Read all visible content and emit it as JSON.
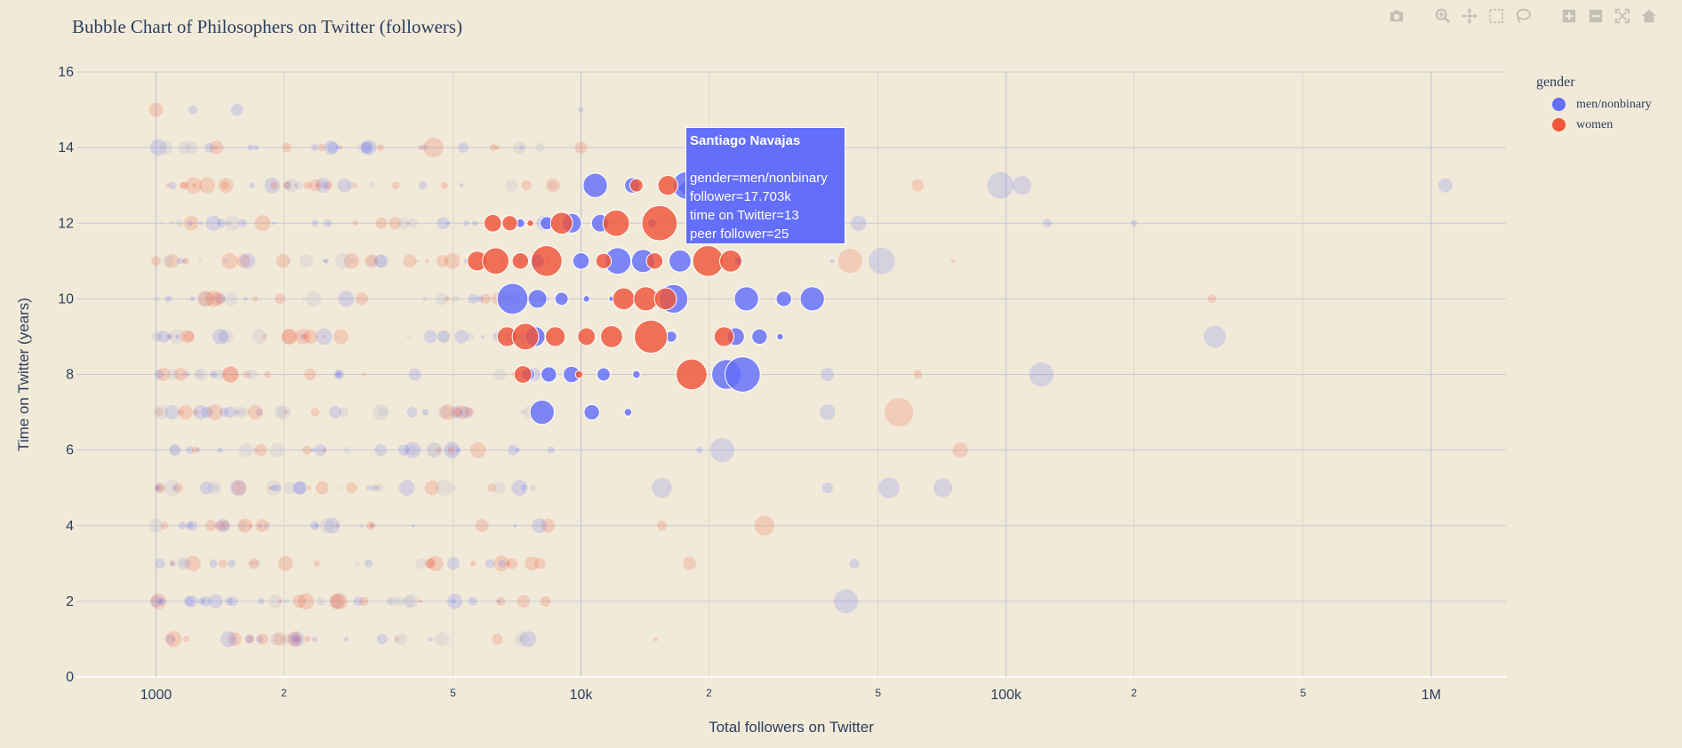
{
  "colors": {
    "men": "#636efa",
    "women": "#ef553b",
    "paper": "#f2ead8",
    "grid": "#c8cbd6"
  },
  "chart_data": {
    "type": "scatter",
    "title": "Bubble Chart of Philosophers on Twitter (followers)",
    "xlabel": "Total followers on Twitter",
    "ylabel": "Time on Twitter (years)",
    "x_scale": "log",
    "xlim": [
      650,
      1500000
    ],
    "ylim": [
      0,
      16
    ],
    "x_major_ticks": [
      {
        "value": 1000,
        "label": "1000"
      },
      {
        "value": 10000,
        "label": "10k"
      },
      {
        "value": 100000,
        "label": "100k"
      },
      {
        "value": 1000000,
        "label": "1M"
      }
    ],
    "x_minor_ticks": [
      {
        "value": 2000,
        "label": "2"
      },
      {
        "value": 5000,
        "label": "5"
      },
      {
        "value": 20000,
        "label": "2"
      },
      {
        "value": 50000,
        "label": "5"
      },
      {
        "value": 200000,
        "label": "2"
      },
      {
        "value": 500000,
        "label": "5"
      }
    ],
    "y_ticks": [
      {
        "value": 0,
        "label": "0"
      },
      {
        "value": 2,
        "label": "2"
      },
      {
        "value": 4,
        "label": "4"
      },
      {
        "value": 6,
        "label": "6"
      },
      {
        "value": 8,
        "label": "8"
      },
      {
        "value": 10,
        "label": "10"
      },
      {
        "value": 12,
        "label": "12"
      },
      {
        "value": 14,
        "label": "14"
      },
      {
        "value": 16,
        "label": "16"
      }
    ],
    "grid": true,
    "legend": {
      "title": "gender",
      "placement": "top-right"
    },
    "bubble_size": "peer follower",
    "series": [
      {
        "name": "men/nonbinary",
        "color": "#636efa",
        "points": [
          {
            "x": 17703,
            "y": 13,
            "s": 25,
            "hl": true
          },
          {
            "x": 10800,
            "y": 13,
            "s": 22,
            "hl": true
          },
          {
            "x": 13200,
            "y": 13,
            "s": 14,
            "hl": true
          },
          {
            "x": 7200,
            "y": 12,
            "s": 8,
            "hl": true
          },
          {
            "x": 8300,
            "y": 12,
            "s": 12,
            "hl": true
          },
          {
            "x": 9500,
            "y": 12,
            "s": 18,
            "hl": true
          },
          {
            "x": 11100,
            "y": 12,
            "s": 16,
            "hl": true
          },
          {
            "x": 14700,
            "y": 12,
            "s": 8,
            "hl": true
          },
          {
            "x": 18500,
            "y": 12,
            "s": 5,
            "hl": true
          },
          {
            "x": 7900,
            "y": 11,
            "s": 13,
            "hl": true
          },
          {
            "x": 10000,
            "y": 11,
            "s": 15,
            "hl": true
          },
          {
            "x": 12200,
            "y": 11,
            "s": 24,
            "hl": true
          },
          {
            "x": 14000,
            "y": 11,
            "s": 21,
            "hl": true
          },
          {
            "x": 17100,
            "y": 11,
            "s": 20,
            "hl": true
          },
          {
            "x": 23500,
            "y": 11,
            "s": 8,
            "hl": true
          },
          {
            "x": 6900,
            "y": 10,
            "s": 28,
            "hl": true
          },
          {
            "x": 7900,
            "y": 10,
            "s": 17,
            "hl": true
          },
          {
            "x": 9000,
            "y": 10,
            "s": 12,
            "hl": true
          },
          {
            "x": 10300,
            "y": 10,
            "s": 6,
            "hl": true
          },
          {
            "x": 11800,
            "y": 10,
            "s": 5,
            "hl": true
          },
          {
            "x": 16500,
            "y": 10,
            "s": 26,
            "hl": true
          },
          {
            "x": 24500,
            "y": 10,
            "s": 22,
            "hl": true
          },
          {
            "x": 30000,
            "y": 10,
            "s": 14,
            "hl": true
          },
          {
            "x": 35000,
            "y": 10,
            "s": 22,
            "hl": true
          },
          {
            "x": 7800,
            "y": 9,
            "s": 18,
            "hl": true
          },
          {
            "x": 16300,
            "y": 9,
            "s": 10,
            "hl": true
          },
          {
            "x": 23100,
            "y": 9,
            "s": 16,
            "hl": true
          },
          {
            "x": 26300,
            "y": 9,
            "s": 14,
            "hl": true
          },
          {
            "x": 29400,
            "y": 9,
            "s": 6,
            "hl": true
          },
          {
            "x": 7500,
            "y": 8,
            "s": 12,
            "hl": true
          },
          {
            "x": 8400,
            "y": 8,
            "s": 14,
            "hl": true
          },
          {
            "x": 9500,
            "y": 8,
            "s": 15,
            "hl": true
          },
          {
            "x": 11300,
            "y": 8,
            "s": 12,
            "hl": true
          },
          {
            "x": 13500,
            "y": 8,
            "s": 7,
            "hl": true
          },
          {
            "x": 22000,
            "y": 8,
            "s": 27,
            "hl": true
          },
          {
            "x": 24000,
            "y": 8,
            "s": 32,
            "hl": true
          },
          {
            "x": 8100,
            "y": 7,
            "s": 22,
            "hl": true
          },
          {
            "x": 10600,
            "y": 7,
            "s": 14,
            "hl": true
          },
          {
            "x": 12900,
            "y": 7,
            "s": 7,
            "hl": true
          },
          {
            "x": 97000,
            "y": 13,
            "s": 24,
            "hl": false
          },
          {
            "x": 109000,
            "y": 13,
            "s": 17,
            "hl": false
          },
          {
            "x": 1080000,
            "y": 13,
            "s": 13,
            "hl": false
          },
          {
            "x": 45000,
            "y": 12,
            "s": 14,
            "hl": false
          },
          {
            "x": 125000,
            "y": 12,
            "s": 8,
            "hl": false
          },
          {
            "x": 200000,
            "y": 12,
            "s": 6,
            "hl": false
          },
          {
            "x": 51000,
            "y": 11,
            "s": 24,
            "hl": false
          },
          {
            "x": 39000,
            "y": 11,
            "s": 4,
            "hl": false
          },
          {
            "x": 310000,
            "y": 9,
            "s": 20,
            "hl": false
          },
          {
            "x": 121000,
            "y": 8,
            "s": 22,
            "hl": false
          },
          {
            "x": 38000,
            "y": 8,
            "s": 12,
            "hl": false
          },
          {
            "x": 21500,
            "y": 6,
            "s": 22,
            "hl": false
          },
          {
            "x": 19000,
            "y": 6,
            "s": 6,
            "hl": false
          },
          {
            "x": 38000,
            "y": 7,
            "s": 14,
            "hl": false
          },
          {
            "x": 53000,
            "y": 5,
            "s": 19,
            "hl": false
          },
          {
            "x": 71000,
            "y": 5,
            "s": 17,
            "hl": false
          },
          {
            "x": 38000,
            "y": 5,
            "s": 10,
            "hl": false
          },
          {
            "x": 15500,
            "y": 5,
            "s": 18,
            "hl": false
          },
          {
            "x": 42000,
            "y": 2,
            "s": 22,
            "hl": false
          },
          {
            "x": 44000,
            "y": 3,
            "s": 9,
            "hl": false
          },
          {
            "x": 10000,
            "y": 15,
            "s": 5,
            "hl": false
          },
          {
            "x": 1550,
            "y": 15,
            "s": 11,
            "hl": false
          },
          {
            "x": 1220,
            "y": 15,
            "s": 8,
            "hl": false
          }
        ]
      },
      {
        "name": "women",
        "color": "#ef553b",
        "points": [
          {
            "x": 13500,
            "y": 13,
            "s": 12,
            "hl": true
          },
          {
            "x": 16000,
            "y": 13,
            "s": 18,
            "hl": true
          },
          {
            "x": 6200,
            "y": 12,
            "s": 16,
            "hl": true
          },
          {
            "x": 6800,
            "y": 12,
            "s": 14,
            "hl": true
          },
          {
            "x": 7600,
            "y": 12,
            "s": 6,
            "hl": true
          },
          {
            "x": 9000,
            "y": 12,
            "s": 20,
            "hl": true
          },
          {
            "x": 12100,
            "y": 12,
            "s": 24,
            "hl": true
          },
          {
            "x": 15300,
            "y": 12,
            "s": 32,
            "hl": true
          },
          {
            "x": 5700,
            "y": 11,
            "s": 18,
            "hl": true
          },
          {
            "x": 6300,
            "y": 11,
            "s": 24,
            "hl": true
          },
          {
            "x": 7200,
            "y": 11,
            "s": 15,
            "hl": true
          },
          {
            "x": 8300,
            "y": 11,
            "s": 28,
            "hl": true
          },
          {
            "x": 11300,
            "y": 11,
            "s": 14,
            "hl": true
          },
          {
            "x": 14900,
            "y": 11,
            "s": 15,
            "hl": true
          },
          {
            "x": 19900,
            "y": 11,
            "s": 28,
            "hl": true
          },
          {
            "x": 22500,
            "y": 11,
            "s": 20,
            "hl": true
          },
          {
            "x": 12600,
            "y": 10,
            "s": 20,
            "hl": true
          },
          {
            "x": 14200,
            "y": 10,
            "s": 22,
            "hl": true
          },
          {
            "x": 15800,
            "y": 10,
            "s": 20,
            "hl": true
          },
          {
            "x": 6700,
            "y": 9,
            "s": 18,
            "hl": true
          },
          {
            "x": 7400,
            "y": 9,
            "s": 24,
            "hl": true
          },
          {
            "x": 8700,
            "y": 9,
            "s": 18,
            "hl": true
          },
          {
            "x": 10300,
            "y": 9,
            "s": 16,
            "hl": true
          },
          {
            "x": 11800,
            "y": 9,
            "s": 20,
            "hl": true
          },
          {
            "x": 14600,
            "y": 9,
            "s": 30,
            "hl": true
          },
          {
            "x": 21700,
            "y": 9,
            "s": 18,
            "hl": true
          },
          {
            "x": 7300,
            "y": 8,
            "s": 16,
            "hl": true
          },
          {
            "x": 9900,
            "y": 8,
            "s": 7,
            "hl": true
          },
          {
            "x": 18200,
            "y": 8,
            "s": 28,
            "hl": true
          },
          {
            "x": 17400,
            "y": 13,
            "s": 5,
            "hl": false
          },
          {
            "x": 62000,
            "y": 13,
            "s": 11,
            "hl": false
          },
          {
            "x": 43000,
            "y": 11,
            "s": 22,
            "hl": false
          },
          {
            "x": 75000,
            "y": 11,
            "s": 4,
            "hl": false
          },
          {
            "x": 305000,
            "y": 10,
            "s": 8,
            "hl": false
          },
          {
            "x": 62000,
            "y": 8,
            "s": 8,
            "hl": false
          },
          {
            "x": 56000,
            "y": 7,
            "s": 26,
            "hl": false
          },
          {
            "x": 78000,
            "y": 6,
            "s": 14,
            "hl": false
          },
          {
            "x": 27000,
            "y": 4,
            "s": 18,
            "hl": false
          },
          {
            "x": 15500,
            "y": 4,
            "s": 9,
            "hl": false
          },
          {
            "x": 18000,
            "y": 3,
            "s": 12,
            "hl": false
          },
          {
            "x": 4500,
            "y": 14,
            "s": 18,
            "hl": false
          },
          {
            "x": 1000,
            "y": 15,
            "s": 13,
            "hl": false
          },
          {
            "x": 15000,
            "y": 1,
            "s": 4,
            "hl": false
          },
          {
            "x": 10000,
            "y": 14,
            "s": 11,
            "hl": false
          }
        ]
      }
    ]
  },
  "tooltip": {
    "name": "Santiago Navajas",
    "lines": [
      "gender=men/nonbinary",
      "follower=17.703k",
      "time on Twitter=13",
      "peer follower=25"
    ]
  },
  "modebar": {
    "icons": [
      "camera-icon",
      "zoom-icon",
      "pan-icon",
      "box-select-icon",
      "lasso-icon",
      "zoom-in-icon",
      "zoom-out-icon",
      "autoscale-icon",
      "reset-axes-icon",
      "plotly-logo-icon"
    ]
  }
}
